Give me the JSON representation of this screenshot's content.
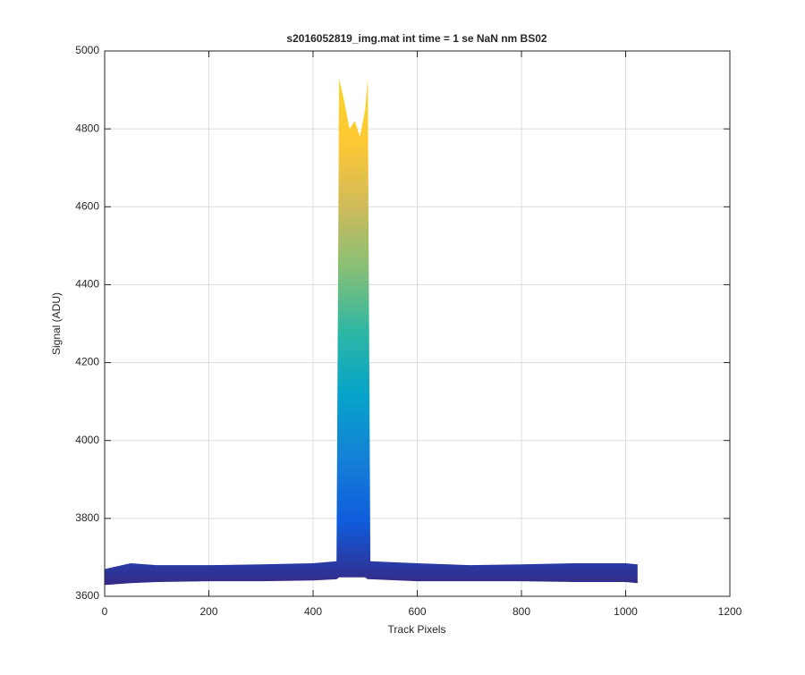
{
  "chart_data": {
    "type": "band",
    "title": "s2016052819_img.mat int time = 1 se  NaN nm BS02",
    "xlabel": "Track Pixels",
    "ylabel": "Signal (ADU)",
    "x": [
      0,
      50,
      100,
      200,
      300,
      400,
      445,
      450,
      460,
      470,
      480,
      490,
      500,
      505,
      510,
      600,
      700,
      800,
      900,
      1000,
      1023
    ],
    "series": [
      {
        "values": [
          3670,
          3685,
          3680,
          3680,
          3682,
          3685,
          3690,
          4930,
          4870,
          4800,
          4820,
          4780,
          4850,
          4930,
          3690,
          3685,
          3680,
          3682,
          3685,
          3685,
          3682
        ]
      },
      {
        "values": [
          3630,
          3635,
          3638,
          3640,
          3640,
          3642,
          3645,
          3650,
          3650,
          3650,
          3650,
          3650,
          3650,
          3645,
          3645,
          3640,
          3640,
          3640,
          3638,
          3638,
          3635
        ]
      }
    ],
    "colormap": [
      "#352a87",
      "#0f5cdd",
      "#1481d6",
      "#06a4ca",
      "#2eb7a4",
      "#87bf77",
      "#d1bb59",
      "#fec832",
      "#f9d528"
    ],
    "xlim": [
      0,
      1200
    ],
    "xticks": [
      0,
      200,
      400,
      600,
      800,
      1000,
      1200
    ],
    "ylim": [
      3600,
      5000
    ],
    "yticks": [
      3600,
      3800,
      4000,
      4200,
      4400,
      4600,
      4800,
      5000
    ],
    "grid": true
  }
}
